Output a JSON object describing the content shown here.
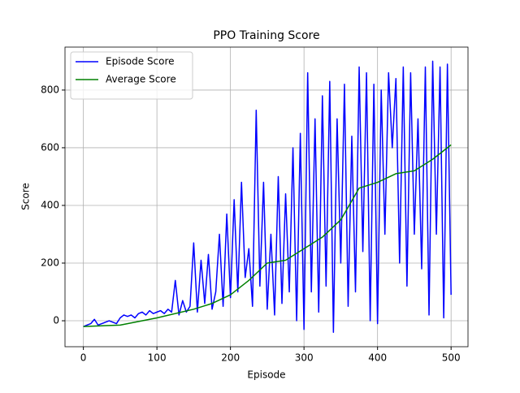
{
  "chart_data": {
    "type": "line",
    "title": "PPO Training Score",
    "x_label": "Episode",
    "y_label": "Score",
    "xlim": [
      -25,
      523
    ],
    "ylim": [
      -90,
      949
    ],
    "xticks": [
      0,
      100,
      200,
      300,
      400,
      500
    ],
    "yticks": [
      0,
      200,
      400,
      600,
      800
    ],
    "grid": true,
    "legend": "upper left",
    "series": [
      {
        "name": "Episode Score",
        "color": "#0000ff",
        "x": [
          0,
          5,
          10,
          15,
          20,
          25,
          30,
          35,
          40,
          45,
          50,
          55,
          60,
          65,
          70,
          75,
          80,
          85,
          90,
          95,
          100,
          105,
          110,
          115,
          120,
          125,
          130,
          135,
          140,
          145,
          150,
          155,
          160,
          165,
          170,
          175,
          180,
          185,
          190,
          195,
          200,
          205,
          210,
          215,
          220,
          225,
          230,
          235,
          240,
          245,
          250,
          255,
          260,
          265,
          270,
          275,
          280,
          285,
          290,
          295,
          300,
          305,
          310,
          315,
          320,
          325,
          330,
          335,
          340,
          345,
          350,
          355,
          360,
          365,
          370,
          375,
          380,
          385,
          390,
          395,
          400,
          405,
          410,
          415,
          420,
          425,
          430,
          435,
          440,
          445,
          450,
          455,
          460,
          465,
          470,
          475,
          480,
          485,
          490,
          495,
          500
        ],
        "values": [
          -20,
          -15,
          -10,
          5,
          -15,
          -10,
          -5,
          0,
          -5,
          -10,
          10,
          20,
          15,
          20,
          10,
          25,
          30,
          20,
          35,
          25,
          30,
          35,
          25,
          40,
          30,
          140,
          20,
          70,
          30,
          50,
          270,
          30,
          210,
          60,
          230,
          40,
          100,
          300,
          50,
          370,
          80,
          420,
          100,
          480,
          150,
          250,
          50,
          730,
          120,
          480,
          40,
          300,
          20,
          500,
          60,
          440,
          100,
          600,
          0,
          650,
          -30,
          860,
          100,
          700,
          30,
          780,
          120,
          830,
          -40,
          700,
          200,
          820,
          50,
          640,
          100,
          880,
          240,
          860,
          0,
          820,
          -10,
          800,
          300,
          860,
          600,
          840,
          200,
          880,
          120,
          860,
          300,
          700,
          180,
          880,
          20,
          900,
          300,
          880,
          10,
          890,
          90
        ]
      },
      {
        "name": "Average Score",
        "color": "#008000",
        "x": [
          0,
          50,
          100,
          150,
          175,
          200,
          225,
          250,
          275,
          300,
          325,
          350,
          375,
          400,
          425,
          450,
          475,
          500
        ],
        "values": [
          -20,
          -15,
          10,
          40,
          60,
          90,
          140,
          200,
          210,
          250,
          290,
          350,
          460,
          480,
          510,
          520,
          560,
          610
        ]
      }
    ]
  }
}
